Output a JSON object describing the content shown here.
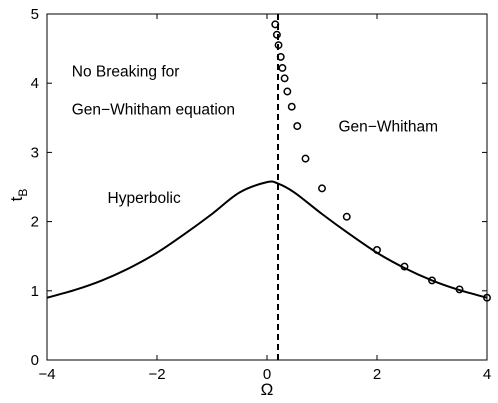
{
  "chart_data": {
    "type": "line",
    "title": "",
    "xlabel": "Ω",
    "ylabel_main": "t",
    "ylabel_sub": "B",
    "xlim": [
      -4,
      4
    ],
    "ylim": [
      0,
      5
    ],
    "xticks": [
      -4,
      -2,
      0,
      2,
      4
    ],
    "yticks": [
      0,
      1,
      2,
      3,
      4,
      5
    ],
    "xtick_labels": [
      "−4",
      "−2",
      "0",
      "2",
      "4"
    ],
    "ytick_labels": [
      "0",
      "1",
      "2",
      "3",
      "4",
      "5"
    ],
    "grid": false,
    "vline": {
      "x": 0.2,
      "style": "dashed"
    },
    "series": [
      {
        "style": "solid",
        "x": [
          -4,
          -3.5,
          -3,
          -2.5,
          -2,
          -1.5,
          -1,
          -0.5,
          0,
          0.2,
          0.5,
          1,
          1.5,
          2,
          2.5,
          3,
          3.5,
          4
        ],
        "y": [
          0.9,
          1.01,
          1.15,
          1.33,
          1.55,
          1.82,
          2.11,
          2.42,
          2.57,
          2.55,
          2.42,
          2.11,
          1.82,
          1.55,
          1.33,
          1.15,
          1.01,
          0.9
        ]
      },
      {
        "style": "circles",
        "x": [
          0.15,
          0.18,
          0.21,
          0.25,
          0.28,
          0.32,
          0.37,
          0.45,
          0.55,
          0.7,
          1.0,
          1.45,
          2.0,
          2.5,
          3.0,
          3.5,
          4.0
        ],
        "y": [
          4.85,
          4.7,
          4.55,
          4.38,
          4.22,
          4.07,
          3.88,
          3.66,
          3.38,
          2.91,
          2.48,
          2.07,
          1.59,
          1.35,
          1.15,
          1.02,
          0.9
        ]
      }
    ],
    "annotations": [
      {
        "text": "No Breaking for",
        "x": -3.55,
        "y": 4.1
      },
      {
        "text": "Gen−Whitham equation",
        "x": -3.55,
        "y": 3.55
      },
      {
        "text": "Gen−Whitham",
        "x": 1.3,
        "y": 3.3
      },
      {
        "text": "Hyperbolic",
        "x": -2.9,
        "y": 2.27
      }
    ]
  }
}
